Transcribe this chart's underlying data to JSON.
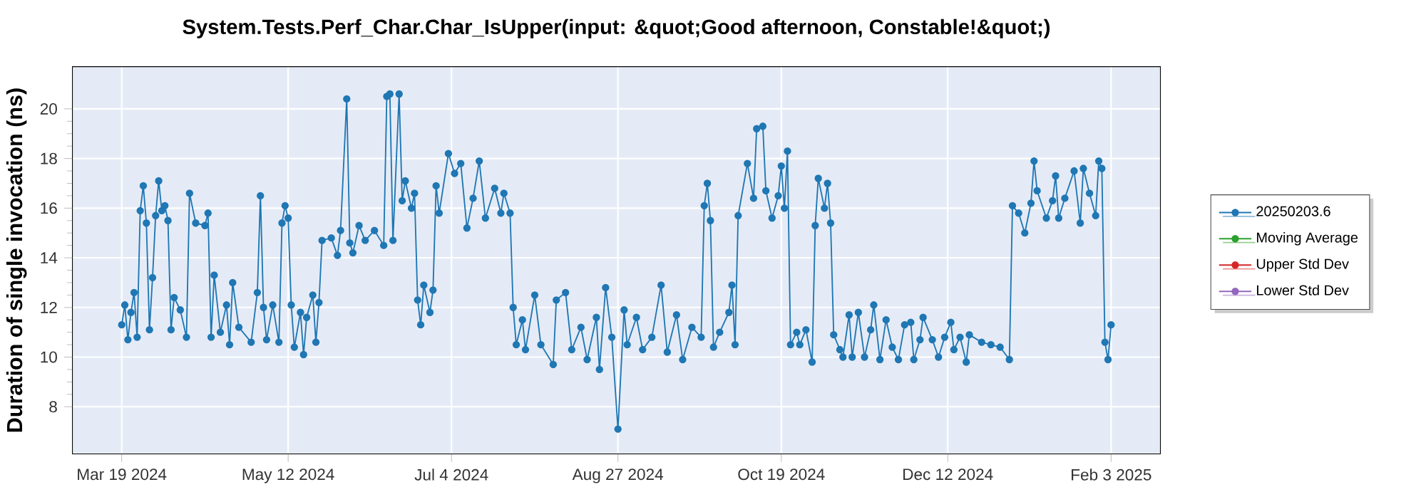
{
  "chart_data": {
    "type": "line",
    "title": "System.Tests.Perf_Char.Char_IsUpper(input: &quot;Good afternoon, Constable!&quot;)",
    "ylabel": "Duration of single invocation (ns)",
    "x": [
      "2024-03-19",
      "2024-03-20",
      "2024-03-21",
      "2024-03-22",
      "2024-03-23",
      "2024-03-24",
      "2024-03-25",
      "2024-03-26",
      "2024-03-27",
      "2024-03-28",
      "2024-03-29",
      "2024-03-30",
      "2024-03-31",
      "2024-04-01",
      "2024-04-02",
      "2024-04-03",
      "2024-04-04",
      "2024-04-05",
      "2024-04-07",
      "2024-04-09",
      "2024-04-10",
      "2024-04-12",
      "2024-04-15",
      "2024-04-16",
      "2024-04-17",
      "2024-04-18",
      "2024-04-20",
      "2024-04-22",
      "2024-04-23",
      "2024-04-24",
      "2024-04-26",
      "2024-04-30",
      "2024-05-02",
      "2024-05-03",
      "2024-05-04",
      "2024-05-05",
      "2024-05-07",
      "2024-05-09",
      "2024-05-10",
      "2024-05-11",
      "2024-05-12",
      "2024-05-13",
      "2024-05-14",
      "2024-05-16",
      "2024-05-17",
      "2024-05-18",
      "2024-05-20",
      "2024-05-21",
      "2024-05-22",
      "2024-05-23",
      "2024-05-26",
      "2024-05-28",
      "2024-05-29",
      "2024-05-31",
      "2024-06-01",
      "2024-06-02",
      "2024-06-04",
      "2024-06-06",
      "2024-06-09",
      "2024-06-12",
      "2024-06-13",
      "2024-06-14",
      "2024-06-15",
      "2024-06-17",
      "2024-06-18",
      "2024-06-19",
      "2024-06-21",
      "2024-06-22",
      "2024-06-23",
      "2024-06-24",
      "2024-06-25",
      "2024-06-27",
      "2024-06-28",
      "2024-06-29",
      "2024-06-30",
      "2024-07-03",
      "2024-07-05",
      "2024-07-07",
      "2024-07-09",
      "2024-07-11",
      "2024-07-13",
      "2024-07-15",
      "2024-07-18",
      "2024-07-20",
      "2024-07-21",
      "2024-07-23",
      "2024-07-24",
      "2024-07-25",
      "2024-07-27",
      "2024-07-28",
      "2024-07-31",
      "2024-08-02",
      "2024-08-06",
      "2024-08-07",
      "2024-08-10",
      "2024-08-12",
      "2024-08-15",
      "2024-08-17",
      "2024-08-20",
      "2024-08-21",
      "2024-08-23",
      "2024-08-25",
      "2024-08-27",
      "2024-08-29",
      "2024-08-30",
      "2024-09-02",
      "2024-09-04",
      "2024-09-07",
      "2024-09-10",
      "2024-09-12",
      "2024-09-15",
      "2024-09-17",
      "2024-09-20",
      "2024-09-23",
      "2024-09-24",
      "2024-09-25",
      "2024-09-26",
      "2024-09-27",
      "2024-09-29",
      "2024-10-02",
      "2024-10-03",
      "2024-10-04",
      "2024-10-05",
      "2024-10-08",
      "2024-10-10",
      "2024-10-11",
      "2024-10-13",
      "2024-10-14",
      "2024-10-16",
      "2024-10-18",
      "2024-10-19",
      "2024-10-20",
      "2024-10-21",
      "2024-10-22",
      "2024-10-24",
      "2024-10-25",
      "2024-10-27",
      "2024-10-29",
      "2024-10-30",
      "2024-10-31",
      "2024-11-02",
      "2024-11-03",
      "2024-11-04",
      "2024-11-05",
      "2024-11-07",
      "2024-11-08",
      "2024-11-10",
      "2024-11-11",
      "2024-11-13",
      "2024-11-15",
      "2024-11-17",
      "2024-11-18",
      "2024-11-20",
      "2024-11-22",
      "2024-11-24",
      "2024-11-26",
      "2024-11-28",
      "2024-11-30",
      "2024-12-01",
      "2024-12-03",
      "2024-12-04",
      "2024-12-07",
      "2024-12-09",
      "2024-12-11",
      "2024-12-13",
      "2024-12-14",
      "2024-12-16",
      "2024-12-18",
      "2024-12-19",
      "2024-12-23",
      "2024-12-26",
      "2024-12-29",
      "2025-01-01",
      "2025-01-02",
      "2025-01-04",
      "2025-01-06",
      "2025-01-08",
      "2025-01-09",
      "2025-01-10",
      "2025-01-13",
      "2025-01-15",
      "2025-01-16",
      "2025-01-17",
      "2025-01-19",
      "2025-01-22",
      "2025-01-24",
      "2025-01-25",
      "2025-01-27",
      "2025-01-29",
      "2025-01-30",
      "2025-01-31",
      "2025-02-01",
      "2025-02-02",
      "2025-02-03"
    ],
    "series": [
      {
        "name": "20250203.6",
        "color": "#1f77b4",
        "values": [
          11.3,
          12.1,
          10.7,
          11.8,
          12.6,
          10.8,
          15.9,
          16.9,
          15.4,
          11.1,
          13.2,
          15.7,
          17.1,
          15.9,
          16.1,
          15.5,
          11.1,
          12.4,
          11.9,
          10.8,
          16.6,
          15.4,
          15.3,
          15.8,
          10.8,
          13.3,
          11.0,
          12.1,
          10.5,
          13.0,
          11.2,
          10.6,
          12.6,
          16.5,
          12.0,
          10.7,
          12.1,
          10.6,
          15.4,
          16.1,
          15.6,
          12.1,
          10.4,
          11.8,
          10.1,
          11.6,
          12.5,
          10.6,
          12.2,
          14.7,
          14.8,
          14.1,
          15.1,
          20.4,
          14.6,
          14.2,
          15.3,
          14.7,
          15.1,
          14.5,
          20.5,
          20.6,
          14.7,
          20.6,
          16.3,
          17.1,
          16.0,
          16.6,
          12.3,
          11.3,
          12.9,
          11.8,
          12.7,
          16.9,
          15.8,
          18.2,
          17.4,
          17.8,
          15.2,
          16.4,
          17.9,
          15.6,
          16.8,
          15.8,
          16.6,
          15.8,
          12.0,
          10.5,
          11.5,
          10.3,
          12.5,
          10.5,
          9.7,
          12.3,
          12.6,
          10.3,
          11.2,
          9.9,
          11.6,
          9.5,
          12.8,
          10.8,
          7.1,
          11.9,
          10.5,
          11.6,
          10.3,
          10.8,
          12.9,
          10.2,
          11.7,
          9.9,
          11.2,
          10.8,
          16.1,
          17.0,
          15.5,
          10.4,
          11.0,
          11.8,
          12.9,
          10.5,
          15.7,
          17.8,
          16.4,
          19.2,
          19.3,
          16.7,
          15.6,
          16.5,
          17.7,
          16.0,
          18.3,
          10.5,
          11.0,
          10.5,
          11.1,
          9.8,
          15.3,
          17.2,
          16.0,
          17.0,
          15.4,
          10.9,
          10.3,
          10.0,
          11.7,
          10.0,
          11.8,
          10.0,
          11.1,
          12.1,
          9.9,
          11.5,
          10.4,
          9.9,
          11.3,
          11.4,
          9.9,
          10.7,
          11.6,
          10.7,
          10.0,
          10.8,
          11.4,
          10.3,
          10.8,
          9.8,
          10.9,
          10.6,
          10.5,
          10.4,
          9.9,
          16.1,
          15.8,
          15.0,
          16.2,
          17.9,
          16.7,
          15.6,
          16.3,
          17.3,
          15.6,
          16.4,
          17.5,
          15.4,
          17.6,
          16.6,
          15.7,
          17.9,
          17.6,
          10.6,
          9.9,
          11.3
        ]
      },
      {
        "name": "Moving Average",
        "color": "#2ca02c",
        "values": [
          null,
          null,
          null,
          null,
          null,
          null,
          null,
          null,
          null,
          null,
          null,
          null,
          null,
          null,
          null,
          null,
          null,
          null,
          null,
          null,
          null,
          null,
          null,
          null,
          null,
          null,
          null,
          null,
          null,
          null,
          null,
          null,
          null,
          null,
          null,
          null,
          null,
          null,
          null,
          null,
          null,
          null,
          null,
          null,
          null,
          null,
          null,
          null,
          null,
          null,
          null,
          null,
          null,
          null,
          null,
          null,
          null,
          null,
          null,
          null,
          null,
          null,
          null,
          null,
          null,
          null,
          null,
          null,
          null,
          null,
          null,
          null,
          null,
          null,
          null,
          null,
          null,
          null,
          null,
          null,
          null,
          null,
          null,
          null,
          null,
          null,
          null,
          null,
          null,
          null,
          null,
          null,
          null,
          null,
          null,
          null,
          null,
          null,
          null,
          null,
          null,
          null,
          null,
          null,
          null,
          null,
          null,
          null,
          null,
          null,
          null,
          null,
          null,
          null,
          null,
          null,
          null,
          null,
          null,
          null,
          null,
          null,
          null,
          null,
          null,
          null,
          null,
          null,
          null,
          null,
          null,
          null,
          null,
          null,
          null,
          null,
          null,
          null,
          null,
          null,
          null,
          null,
          null,
          null,
          null,
          null,
          null,
          null,
          null,
          null,
          null,
          null,
          null,
          null,
          null,
          null,
          null,
          null,
          null,
          null,
          null,
          null,
          null,
          null,
          null,
          null,
          null,
          null,
          null,
          null,
          null,
          null,
          null,
          null,
          null,
          null,
          null,
          null,
          null,
          null,
          null,
          null,
          null,
          null,
          null,
          null,
          null,
          null,
          null,
          null,
          null,
          null,
          null,
          null
        ]
      },
      {
        "name": "Upper Std Dev",
        "color": "#d62728",
        "values": [
          null,
          null,
          null,
          null,
          null,
          null,
          null,
          null,
          null,
          null,
          null,
          null,
          null,
          null,
          null,
          null,
          null,
          null,
          null,
          null,
          null,
          null,
          null,
          null,
          null,
          null,
          null,
          null,
          null,
          null,
          null,
          null,
          null,
          null,
          null,
          null,
          null,
          null,
          null,
          null,
          null,
          null,
          null,
          null,
          null,
          null,
          null,
          null,
          null,
          null,
          null,
          null,
          null,
          null,
          null,
          null,
          null,
          null,
          null,
          null,
          null,
          null,
          null,
          null,
          null,
          null,
          null,
          null,
          null,
          null,
          null,
          null,
          null,
          null,
          null,
          null,
          null,
          null,
          null,
          null,
          null,
          null,
          null,
          null,
          null,
          null,
          null,
          null,
          null,
          null,
          null,
          null,
          null,
          null,
          null,
          null,
          null,
          null,
          null,
          null,
          null,
          null,
          null,
          null,
          null,
          null,
          null,
          null,
          null,
          null,
          null,
          null,
          null,
          null,
          null,
          null,
          null,
          null,
          null,
          null,
          null,
          null,
          null,
          null,
          null,
          null,
          null,
          null,
          null,
          null,
          null,
          null,
          null,
          null,
          null,
          null,
          null,
          null,
          null,
          null,
          null,
          null,
          null,
          null,
          null,
          null,
          null,
          null,
          null,
          null,
          null,
          null,
          null,
          null,
          null,
          null,
          null,
          null,
          null,
          null,
          null,
          null,
          null,
          null,
          null,
          null,
          null,
          null,
          null,
          null,
          null,
          null,
          null,
          null,
          null,
          null,
          null,
          null,
          null,
          null,
          null,
          null,
          null,
          null,
          null,
          null,
          null,
          null,
          null,
          null,
          null,
          null,
          null,
          null
        ]
      },
      {
        "name": "Lower Std Dev",
        "color": "#9467bd",
        "values": [
          null,
          null,
          null,
          null,
          null,
          null,
          null,
          null,
          null,
          null,
          null,
          null,
          null,
          null,
          null,
          null,
          null,
          null,
          null,
          null,
          null,
          null,
          null,
          null,
          null,
          null,
          null,
          null,
          null,
          null,
          null,
          null,
          null,
          null,
          null,
          null,
          null,
          null,
          null,
          null,
          null,
          null,
          null,
          null,
          null,
          null,
          null,
          null,
          null,
          null,
          null,
          null,
          null,
          null,
          null,
          null,
          null,
          null,
          null,
          null,
          null,
          null,
          null,
          null,
          null,
          null,
          null,
          null,
          null,
          null,
          null,
          null,
          null,
          null,
          null,
          null,
          null,
          null,
          null,
          null,
          null,
          null,
          null,
          null,
          null,
          null,
          null,
          null,
          null,
          null,
          null,
          null,
          null,
          null,
          null,
          null,
          null,
          null,
          null,
          null,
          null,
          null,
          null,
          null,
          null,
          null,
          null,
          null,
          null,
          null,
          null,
          null,
          null,
          null,
          null,
          null,
          null,
          null,
          null,
          null,
          null,
          null,
          null,
          null,
          null,
          null,
          null,
          null,
          null,
          null,
          null,
          null,
          null,
          null,
          null,
          null,
          null,
          null,
          null,
          null,
          null,
          null,
          null,
          null,
          null,
          null,
          null,
          null,
          null,
          null,
          null,
          null,
          null,
          null,
          null,
          null,
          null,
          null,
          null,
          null,
          null,
          null,
          null,
          null,
          null,
          null,
          null,
          null,
          null,
          null,
          null,
          null,
          null,
          null,
          null,
          null,
          null,
          null,
          null,
          null,
          null,
          null,
          null,
          null,
          null,
          null,
          null,
          null,
          null,
          null,
          null,
          null,
          null,
          null
        ]
      }
    ],
    "xlim": [
      "2024-03-03",
      "2025-02-19"
    ],
    "ylim": [
      6.1,
      21.7
    ],
    "xticks": [
      {
        "value": "2024-03-19",
        "label": "Mar 19 2024"
      },
      {
        "value": "2024-05-12",
        "label": "May 12 2024"
      },
      {
        "value": "2024-07-04",
        "label": "Jul 4 2024"
      },
      {
        "value": "2024-08-27",
        "label": "Aug 27 2024"
      },
      {
        "value": "2024-10-19",
        "label": "Oct 19 2024"
      },
      {
        "value": "2024-12-12",
        "label": "Dec 12 2024"
      },
      {
        "value": "2025-02-03",
        "label": "Feb 3 2025"
      }
    ],
    "yticks": [
      8,
      10,
      12,
      14,
      16,
      18,
      20
    ],
    "grid": true,
    "legend": "right",
    "marker": "circle",
    "line_style": "solid"
  }
}
